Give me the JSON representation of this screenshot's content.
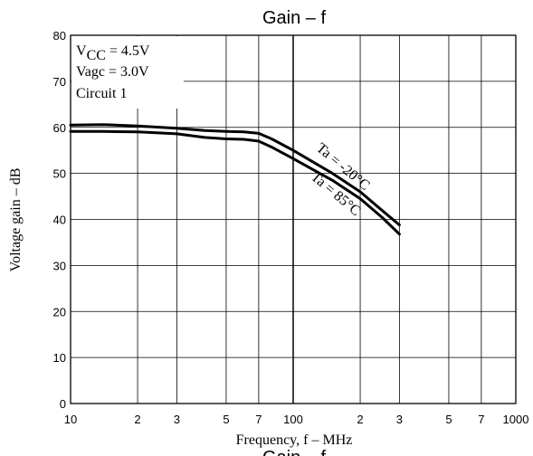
{
  "chart_data": {
    "type": "line",
    "title": "Gain – f",
    "bottom_caption": "Gain – f",
    "xlabel": "Frequency, f  –  MHz",
    "ylabel": "Voltage gain  –  dB",
    "x_scale": "log",
    "xlim": [
      10,
      1000
    ],
    "ylim": [
      0,
      80
    ],
    "grid": true,
    "x_ticks": [
      {
        "value": 10,
        "label": "10"
      },
      {
        "value": 20,
        "label": "2"
      },
      {
        "value": 30,
        "label": "3"
      },
      {
        "value": 50,
        "label": "5"
      },
      {
        "value": 70,
        "label": "7"
      },
      {
        "value": 100,
        "label": "100"
      },
      {
        "value": 200,
        "label": "2"
      },
      {
        "value": 300,
        "label": "3"
      },
      {
        "value": 500,
        "label": "5"
      },
      {
        "value": 700,
        "label": "7"
      },
      {
        "value": 1000,
        "label": "1000"
      }
    ],
    "y_ticks": [
      0,
      10,
      20,
      30,
      40,
      50,
      60,
      70,
      80
    ],
    "conditions": {
      "vcc_sym": "V",
      "vcc_sub": "CC",
      "vcc_val": " = 4.5V",
      "vagc": "Vagc = 3.0V",
      "circuit": "Circuit 1"
    },
    "series": [
      {
        "name": "Ta = -20°C",
        "x": [
          10,
          14,
          20,
          30,
          40,
          50,
          60,
          70,
          80,
          100,
          150,
          200,
          250,
          300
        ],
        "y": [
          60.5,
          60.6,
          60.3,
          59.8,
          59.3,
          59.1,
          59.0,
          58.7,
          57.5,
          55.0,
          50.0,
          46.0,
          42.0,
          38.8
        ]
      },
      {
        "name": "Ta = 85°C",
        "x": [
          10,
          14,
          20,
          30,
          40,
          50,
          60,
          70,
          80,
          100,
          150,
          200,
          250,
          300
        ],
        "y": [
          59.1,
          59.1,
          59.0,
          58.6,
          57.8,
          57.5,
          57.4,
          57.0,
          55.7,
          53.2,
          48.5,
          44.5,
          40.5,
          36.8
        ]
      }
    ]
  }
}
